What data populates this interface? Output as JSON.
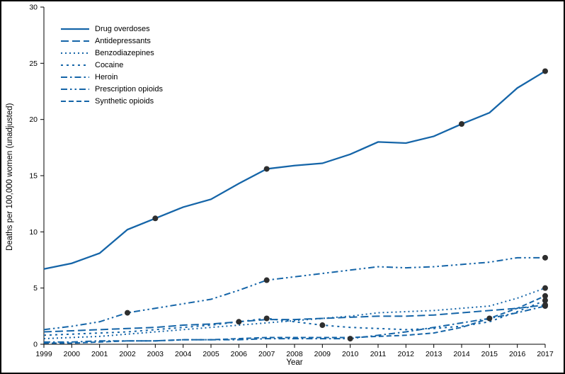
{
  "page": {
    "background": "#ffffff",
    "border_color": "#000000"
  },
  "chart_data": {
    "type": "line",
    "title": "",
    "xlabel": "Year",
    "ylabel": "Deaths per 100,000 women (unadjusted)",
    "x": [
      1999,
      2000,
      2001,
      2002,
      2003,
      2004,
      2005,
      2006,
      2007,
      2008,
      2009,
      2010,
      2011,
      2012,
      2013,
      2014,
      2015,
      2016,
      2017
    ],
    "ylim": [
      0,
      30
    ],
    "y_ticks": [
      0,
      5,
      10,
      15,
      20,
      25,
      30
    ],
    "grid": false,
    "legend_position": "top-left",
    "line_color": "#1565a8",
    "marker_color": "#2e2e2e",
    "axis_color": "#000000",
    "series": [
      {
        "name": "Drug overdoses",
        "dash": "solid",
        "values": [
          6.7,
          7.2,
          8.1,
          10.2,
          11.2,
          12.2,
          12.9,
          14.3,
          15.6,
          15.9,
          16.1,
          16.9,
          18.0,
          17.9,
          18.5,
          19.6,
          20.6,
          22.8,
          24.3
        ],
        "marker_years": [
          2003,
          2007,
          2014,
          2017
        ]
      },
      {
        "name": "Antidepressants",
        "dash": "long-dash",
        "values": [
          1.1,
          1.2,
          1.3,
          1.4,
          1.5,
          1.7,
          1.8,
          2.0,
          2.2,
          2.2,
          2.3,
          2.4,
          2.5,
          2.5,
          2.6,
          2.8,
          3.0,
          3.2,
          3.5
        ],
        "marker_years": [
          2006,
          2017
        ]
      },
      {
        "name": "Benzodiazepines",
        "dash": "dot",
        "values": [
          0.5,
          0.6,
          0.7,
          0.9,
          1.1,
          1.3,
          1.5,
          1.7,
          1.9,
          2.1,
          2.3,
          2.5,
          2.8,
          2.9,
          3.0,
          3.2,
          3.4,
          4.1,
          5.0
        ],
        "marker_years": [
          2017
        ]
      },
      {
        "name": "Cocaine",
        "dash": "short-dash",
        "values": [
          0.8,
          0.9,
          1.0,
          1.1,
          1.3,
          1.5,
          1.7,
          2.0,
          2.3,
          2.0,
          1.7,
          1.5,
          1.4,
          1.3,
          1.4,
          1.6,
          2.0,
          2.9,
          3.9
        ],
        "marker_years": [
          2007,
          2009,
          2017
        ]
      },
      {
        "name": "Heroin",
        "dash": "dash-dot",
        "values": [
          0.2,
          0.2,
          0.3,
          0.3,
          0.3,
          0.4,
          0.4,
          0.4,
          0.5,
          0.5,
          0.5,
          0.5,
          0.8,
          1.1,
          1.5,
          1.9,
          2.3,
          2.8,
          3.4
        ],
        "marker_years": [
          2010,
          2017
        ]
      },
      {
        "name": "Prescription opioids",
        "dash": "dash-dot-dot",
        "values": [
          1.3,
          1.6,
          2.0,
          2.8,
          3.2,
          3.6,
          4.0,
          4.8,
          5.7,
          6.0,
          6.3,
          6.6,
          6.9,
          6.8,
          6.9,
          7.1,
          7.3,
          7.7,
          7.7
        ],
        "marker_years": [
          2002,
          2007,
          2017
        ]
      },
      {
        "name": "Synthetic opioids",
        "dash": "medium-dash",
        "values": [
          0.1,
          0.1,
          0.2,
          0.3,
          0.3,
          0.4,
          0.4,
          0.5,
          0.6,
          0.6,
          0.6,
          0.6,
          0.7,
          0.8,
          1.0,
          1.5,
          2.3,
          3.2,
          4.3
        ],
        "marker_years": [
          2015,
          2017
        ]
      }
    ]
  }
}
